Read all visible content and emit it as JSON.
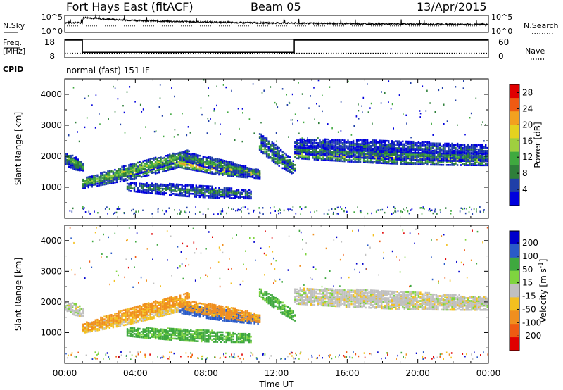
{
  "header": {
    "station": "Fort Hays East (fitACF)",
    "beam": "Beam 05",
    "date": "13/Apr/2015"
  },
  "strip1": {
    "left_label": "N.Sky",
    "right_label": "N.Search",
    "left_ticks": [
      "10^5",
      "10^0"
    ],
    "right_ticks": [
      "10^5",
      "10^0"
    ]
  },
  "strip2": {
    "left_label": "Freq.",
    "left_unit": "[MHz]",
    "right_label": "Nave",
    "left_ticks": [
      "18",
      "8"
    ],
    "right_ticks": [
      "60",
      "0"
    ],
    "cpid_label": "CPID",
    "cpid_text": "normal (fast) 151 IF"
  },
  "chart_data": [
    {
      "type": "line",
      "panel": "noise",
      "x_unit": "hours UT",
      "xlim": [
        0,
        24
      ],
      "series": [
        {
          "name": "N.Sky",
          "x": [
            0,
            1,
            1.05,
            2,
            3,
            4,
            6,
            8,
            10,
            12,
            14,
            16,
            18,
            20,
            22,
            24
          ],
          "values": [
            3.0,
            3.0,
            4.6,
            4.2,
            3.9,
            3.7,
            3.4,
            3.2,
            3.0,
            2.9,
            2.8,
            2.7,
            2.6,
            2.6,
            2.5,
            2.5
          ]
        },
        {
          "name": "N.Search",
          "x": [
            0,
            4,
            8,
            12,
            16,
            20,
            24
          ],
          "values": [
            2.0,
            2.0,
            2.0,
            2.0,
            2.0,
            2.0,
            2.0
          ]
        }
      ]
    },
    {
      "type": "line",
      "panel": "frequency",
      "x_unit": "hours UT",
      "xlim": [
        0,
        24
      ],
      "series": [
        {
          "name": "Freq.",
          "x": [
            0,
            1,
            1,
            13,
            13,
            24
          ],
          "values": [
            18,
            18,
            10.8,
            10.8,
            18,
            18
          ]
        },
        {
          "name": "Nave",
          "x": [
            0,
            24
          ],
          "values": [
            15,
            15
          ]
        }
      ]
    },
    {
      "type": "heatmap",
      "panel": "power",
      "x_unit": "hours UT",
      "xlim": [
        0,
        24
      ],
      "ylim": [
        0,
        4500
      ],
      "ylabel": "Slant Range [km]",
      "yticks": [
        "1000",
        "2000",
        "3000",
        "4000"
      ],
      "colorbar": {
        "label": "Power [dB]",
        "ticks": [
          "4",
          "8",
          "12",
          "16",
          "20",
          "24",
          "28"
        ],
        "range": [
          0,
          30
        ]
      },
      "regions": [
        {
          "x": [
            0,
            1
          ],
          "ranges": [
            [
              1850,
              1650,
              13
            ],
            [
              1950,
              1650,
              12
            ]
          ]
        },
        {
          "x": [
            1,
            7
          ],
          "ranges": [
            [
              1080,
              1850,
              17
            ],
            [
              1130,
              2050,
              15
            ]
          ]
        },
        {
          "x": [
            6.5,
            11
          ],
          "ranges": [
            [
              1750,
              1400,
              22
            ],
            [
              2000,
              1400,
              10
            ]
          ]
        },
        {
          "x": [
            3.5,
            10.5
          ],
          "ranges": [
            [
              1000,
              750,
              8
            ]
          ]
        },
        {
          "x": [
            11,
            13
          ],
          "ranges": [
            [
              2300,
              1500,
              13
            ],
            [
              2600,
              1650,
              9
            ]
          ]
        },
        {
          "x": [
            13,
            24
          ],
          "ranges": [
            [
              2050,
              1820,
              18
            ],
            [
              2200,
              1950,
              9
            ],
            [
              2400,
              2200,
              6
            ]
          ]
        }
      ]
    },
    {
      "type": "heatmap",
      "panel": "velocity",
      "x_unit": "hours UT",
      "xlim": [
        0,
        24
      ],
      "ylim": [
        0,
        4500
      ],
      "ylabel": "Slant Range [km]",
      "yticks": [
        "1000",
        "2000",
        "3000",
        "4000"
      ],
      "colorbar": {
        "label": "Velocity [m s^-1]",
        "ticks": [
          "200",
          "100",
          "50",
          "15",
          "-15",
          "-50",
          "-100",
          "-200"
        ]
      },
      "regions": [
        {
          "x": [
            0,
            1
          ],
          "ranges": [
            [
              1850,
              1650,
              0
            ]
          ]
        },
        {
          "x": [
            1,
            7
          ],
          "ranges": [
            [
              1100,
              1900,
              -20
            ],
            [
              1150,
              2150,
              -60
            ]
          ]
        },
        {
          "x": [
            6.5,
            11
          ],
          "ranges": [
            [
              1750,
              1400,
              120
            ],
            [
              1900,
              1450,
              -60
            ]
          ]
        },
        {
          "x": [
            3.5,
            10.5
          ],
          "ranges": [
            [
              1000,
              800,
              40
            ]
          ]
        },
        {
          "x": [
            11,
            13
          ],
          "ranges": [
            [
              2300,
              1500,
              40
            ]
          ]
        },
        {
          "x": [
            13,
            24
          ],
          "ranges": [
            [
              2050,
              1850,
              0
            ],
            [
              2300,
              2000,
              0
            ]
          ]
        }
      ]
    }
  ],
  "xaxis": {
    "ticks": [
      "00:00",
      "04:00",
      "08:00",
      "12:00",
      "16:00",
      "20:00",
      "00:00"
    ],
    "label": "Time UT"
  },
  "colors": {
    "power_scale": [
      "#0000dd",
      "#1f3fa8",
      "#2e7f3a",
      "#3fa93f",
      "#9fcf3f",
      "#e5d21f",
      "#f3a11f",
      "#ef5a12",
      "#e00000"
    ],
    "velocity_scale": [
      "#0000cc",
      "#2a5bc8",
      "#3fa83f",
      "#7fd43f",
      "#c0c0c0",
      "#f3c01f",
      "#f08f1f",
      "#ef5a12",
      "#e00000"
    ]
  }
}
